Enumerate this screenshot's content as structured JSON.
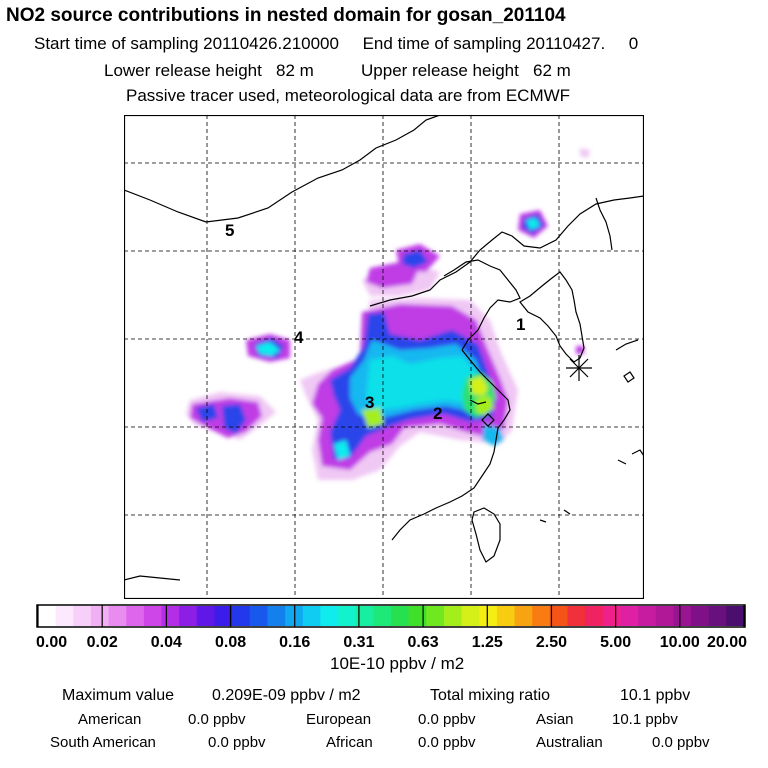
{
  "header": {
    "title": "NO2 source contributions in nested domain for gosan_201104",
    "start_label": "Start time of sampling",
    "start_value": "20110426.210000",
    "end_label": "End time of sampling",
    "end_value": "20110427.     0",
    "lower_label": "Lower release height",
    "lower_value": "82 m",
    "upper_label": "Upper release height",
    "upper_value": "62 m",
    "note": "Passive tracer used, meteorological data are from ECMWF"
  },
  "map": {
    "region_labels": [
      "1",
      "2",
      "3",
      "4",
      "5"
    ],
    "receptor_icon": "asterisk-icon"
  },
  "legend": {
    "tick_labels": [
      "0.00",
      "0.02",
      "0.04",
      "0.08",
      "0.16",
      "0.31",
      "0.63",
      "1.25",
      "2.50",
      "5.00",
      "10.00",
      "20.00"
    ],
    "unit": "10E-10 ppbv / m2",
    "colors": [
      "#ffffff",
      "#fde9fd",
      "#f7cff8",
      "#f1b0f4",
      "#e98cf0",
      "#dd66ec",
      "#cf46e8",
      "#b32ee6",
      "#8c1ee6",
      "#6018e8",
      "#3b1ce8",
      "#2338ea",
      "#1858ec",
      "#1480ee",
      "#10a8f0",
      "#10ccf2",
      "#10ecee",
      "#12f2cc",
      "#18eea0",
      "#1ee878",
      "#26e050",
      "#40e02a",
      "#70e820",
      "#a4ee1c",
      "#d4f018",
      "#f4ee14",
      "#f8cc10",
      "#f8a410",
      "#f87c12",
      "#f45418",
      "#f0303a",
      "#f02262",
      "#f0208a",
      "#e020a4",
      "#c81ca0",
      "#b01898",
      "#981490",
      "#801088",
      "#68107e",
      "#4c0e6e"
    ]
  },
  "stats": {
    "max_label": "Maximum value",
    "max_value": "0.209E-09 ppbv / m2",
    "total_label": "Total mixing ratio",
    "total_value": "10.1 ppbv",
    "regions": [
      {
        "name": "American",
        "value": "0.0 ppbv"
      },
      {
        "name": "European",
        "value": "0.0 ppbv"
      },
      {
        "name": "Asian",
        "value": "10.1 ppbv"
      },
      {
        "name": "South American",
        "value": "0.0 ppbv"
      },
      {
        "name": "African",
        "value": "0.0 ppbv"
      },
      {
        "name": "Australian",
        "value": "0.0 ppbv"
      }
    ]
  }
}
